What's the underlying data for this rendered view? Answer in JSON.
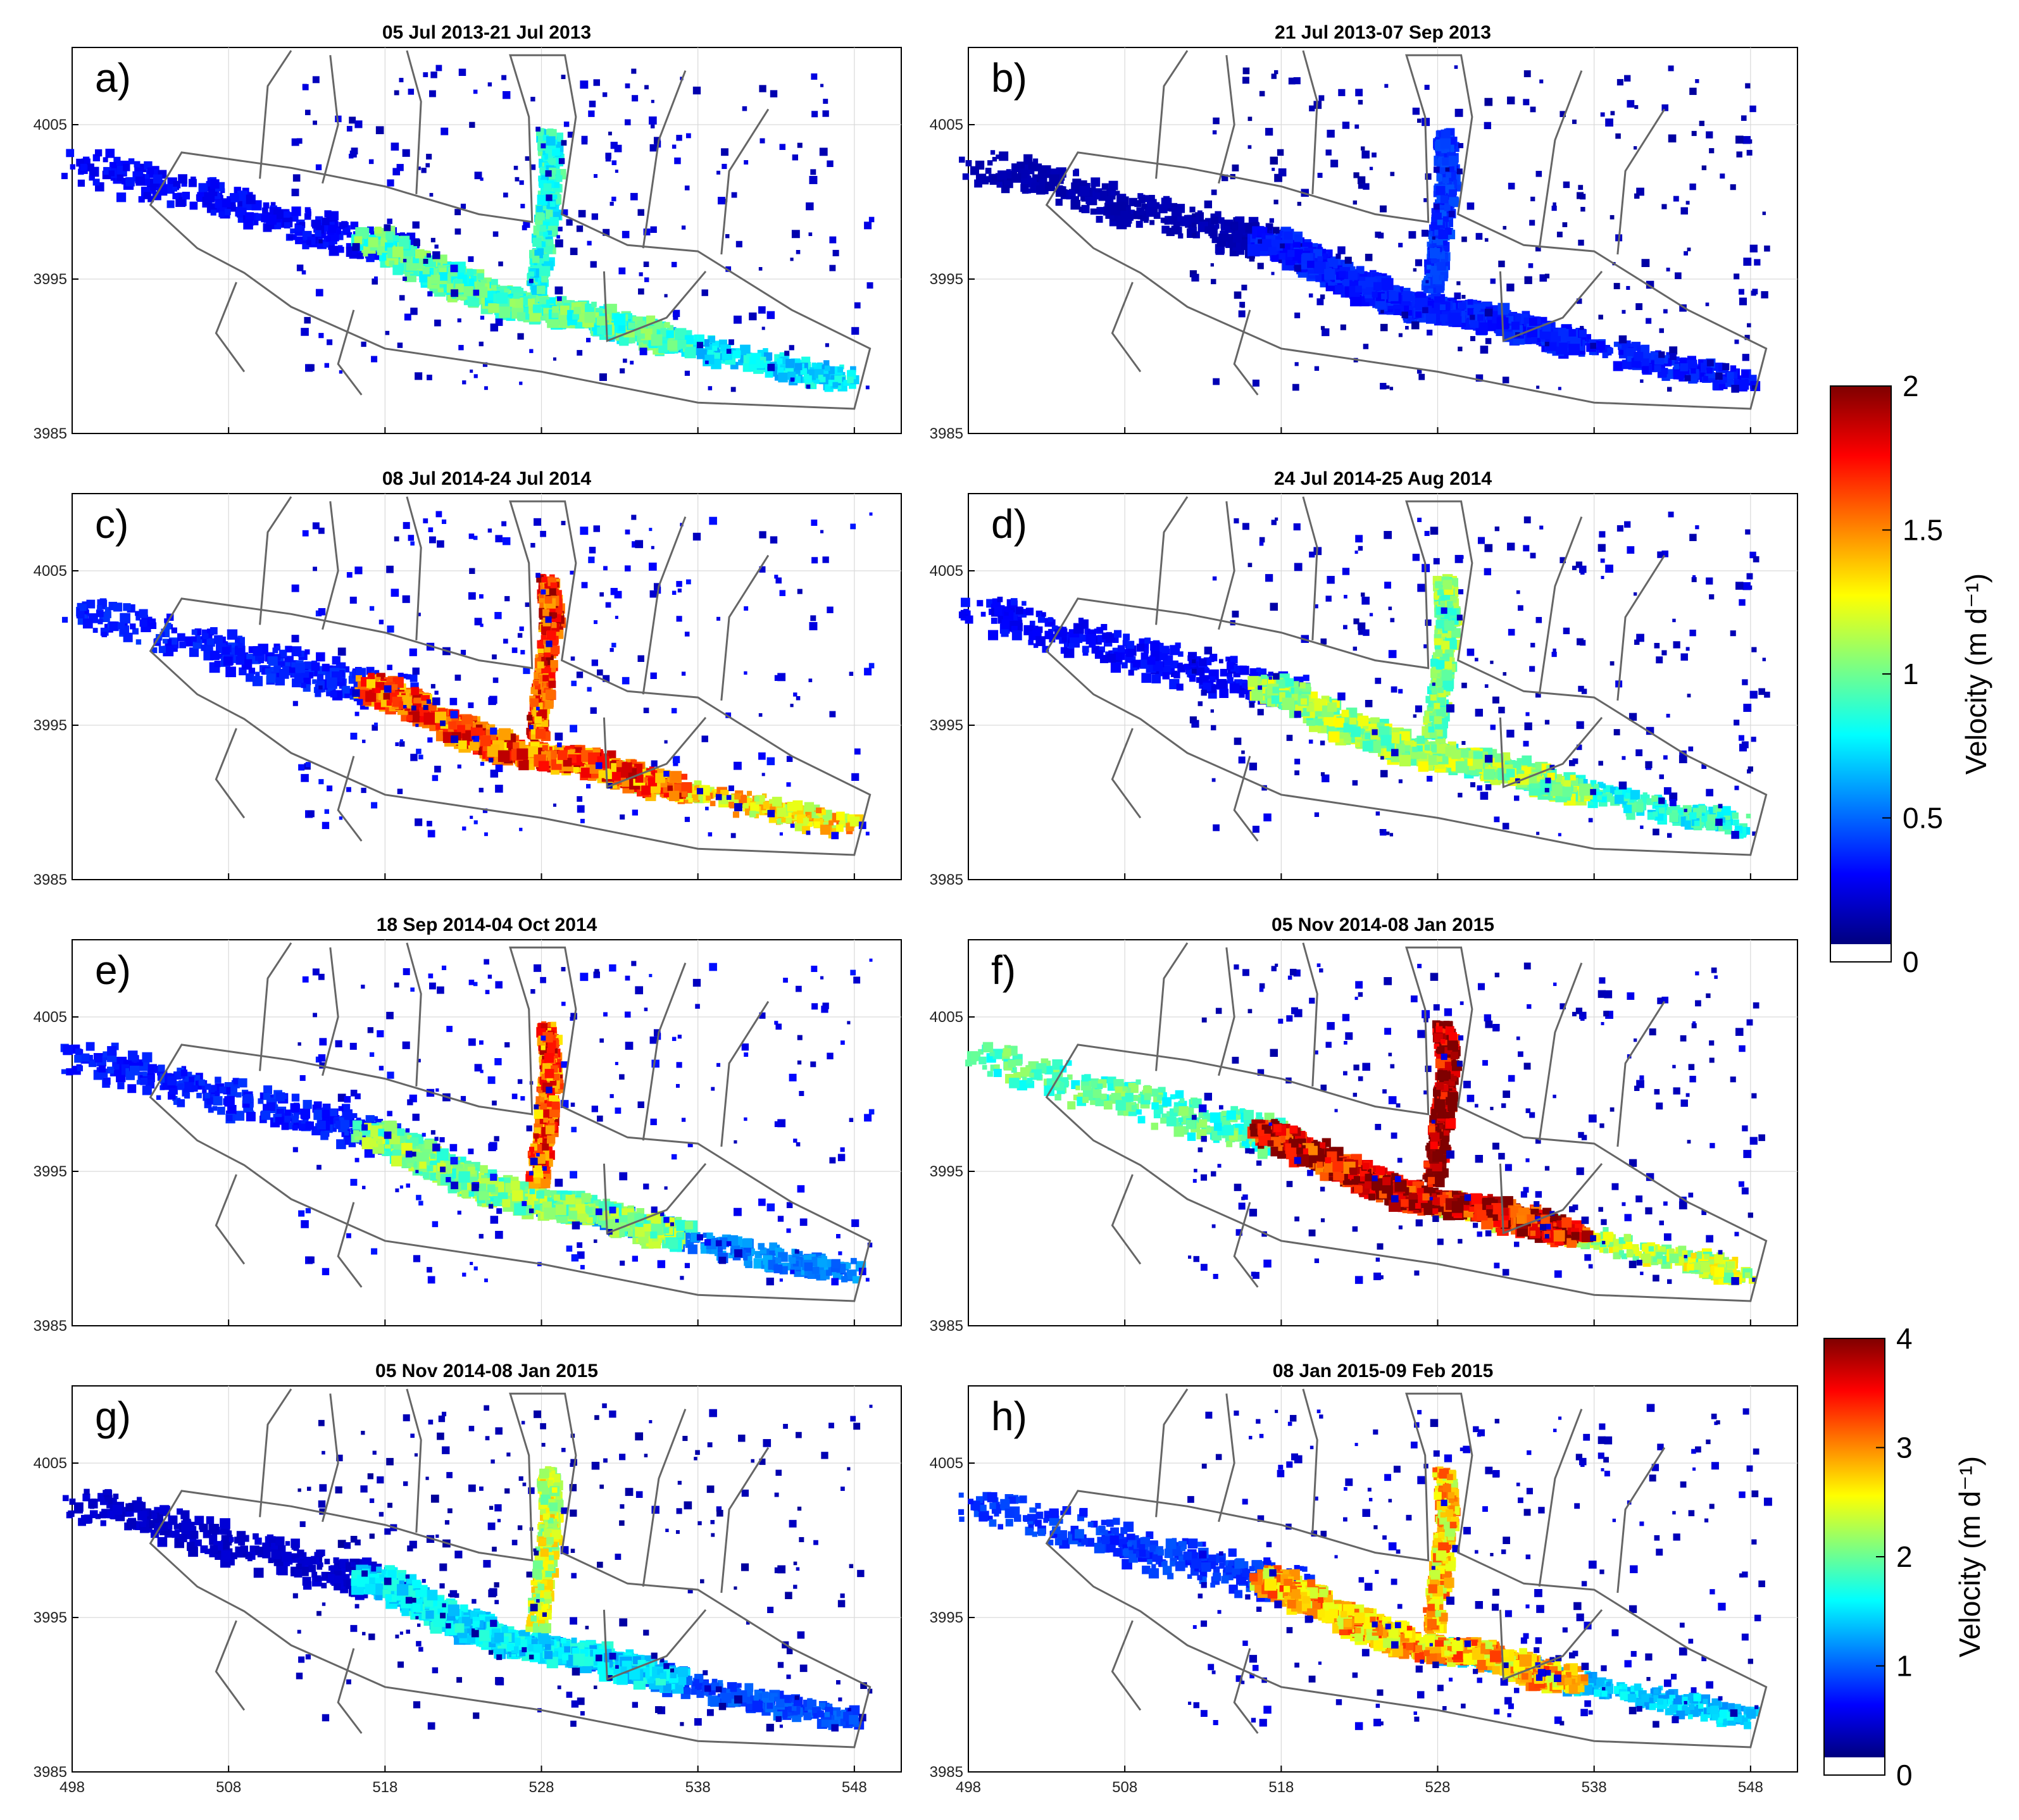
{
  "figure": {
    "colorbars": [
      {
        "label": "Velocity (m d⁻¹)",
        "ticks": [
          "0",
          "0.5",
          "1",
          "1.5",
          "2"
        ],
        "range": [
          0,
          2
        ],
        "applies_to_panels": [
          "a",
          "b",
          "c",
          "d",
          "e",
          "f"
        ]
      },
      {
        "label": "Velocity (m d⁻¹)",
        "ticks": [
          "0",
          "1",
          "2",
          "3",
          "4"
        ],
        "range": [
          0,
          4
        ],
        "applies_to_panels": [
          "g",
          "h"
        ]
      }
    ],
    "colormap": [
      "#00007f",
      "#0000ff",
      "#007fff",
      "#00ffff",
      "#7fff7f",
      "#ffff00",
      "#ff7f00",
      "#ff0000",
      "#7f0000"
    ]
  },
  "chart_data": [
    {
      "type": "heatmap",
      "panel": "a)",
      "title": "05 Jul 2013-21 Jul 2013",
      "xlim": [
        498,
        551
      ],
      "ylim": [
        3985,
        4010
      ],
      "x_ticks": [],
      "y_ticks": [
        "3985",
        "3995",
        "4005"
      ],
      "colorbar_range": [
        0,
        2
      ],
      "trunk_velocity": 0.9,
      "tributary_velocity": 0.8,
      "lower_velocity": 0.7,
      "upper_velocity": 0.25,
      "background_velocity": 0.15
    },
    {
      "type": "heatmap",
      "panel": "b)",
      "title": "21 Jul 2013-07 Sep 2013",
      "xlim": [
        498,
        551
      ],
      "ylim": [
        3985,
        4010
      ],
      "x_ticks": [],
      "y_ticks": [
        "3985",
        "3995",
        "4005"
      ],
      "colorbar_range": [
        0,
        2
      ],
      "trunk_velocity": 0.3,
      "tributary_velocity": 0.35,
      "lower_velocity": 0.3,
      "upper_velocity": 0.1,
      "background_velocity": 0.1
    },
    {
      "type": "heatmap",
      "panel": "c)",
      "title": "08 Jul 2014-24 Jul 2014",
      "xlim": [
        498,
        551
      ],
      "ylim": [
        3985,
        4010
      ],
      "x_ticks": [],
      "y_ticks": [
        "3985",
        "3995",
        "4005"
      ],
      "colorbar_range": [
        0,
        2
      ],
      "trunk_velocity": 1.6,
      "tributary_velocity": 1.65,
      "lower_velocity": 1.3,
      "upper_velocity": 0.3,
      "background_velocity": 0.2
    },
    {
      "type": "heatmap",
      "panel": "d)",
      "title": "24 Jul 2014-25 Aug 2014",
      "xlim": [
        498,
        551
      ],
      "ylim": [
        3985,
        4010
      ],
      "x_ticks": [],
      "y_ticks": [
        "3985",
        "3995",
        "4005"
      ],
      "colorbar_range": [
        0,
        2
      ],
      "trunk_velocity": 1.05,
      "tributary_velocity": 1.0,
      "lower_velocity": 0.8,
      "upper_velocity": 0.25,
      "background_velocity": 0.15
    },
    {
      "type": "heatmap",
      "panel": "e)",
      "title": "18 Sep 2014-04 Oct 2014",
      "xlim": [
        498,
        551
      ],
      "ylim": [
        3985,
        4010
      ],
      "x_ticks": [],
      "y_ticks": [
        "3985",
        "3995",
        "4005"
      ],
      "colorbar_range": [
        0,
        2
      ],
      "trunk_velocity": 1.0,
      "tributary_velocity": 1.6,
      "lower_velocity": 0.5,
      "upper_velocity": 0.3,
      "background_velocity": 0.2
    },
    {
      "type": "heatmap",
      "panel": "f)",
      "title": "05 Nov 2014-08 Jan 2015",
      "xlim": [
        498,
        551
      ],
      "ylim": [
        3985,
        4010
      ],
      "x_ticks": [],
      "y_ticks": [
        "3985",
        "3995",
        "4005"
      ],
      "colorbar_range": [
        0,
        2
      ],
      "trunk_velocity": 1.85,
      "tributary_velocity": 2.0,
      "lower_velocity": 1.1,
      "upper_velocity": 0.9,
      "background_velocity": 0.15
    },
    {
      "type": "heatmap",
      "panel": "g)",
      "title": "05 Nov 2014-08 Jan 2015",
      "xlim": [
        498,
        551
      ],
      "ylim": [
        3985,
        4010
      ],
      "x_ticks": [
        "498",
        "508",
        "518",
        "528",
        "538",
        "548"
      ],
      "y_ticks": [
        "3985",
        "3995",
        "4005"
      ],
      "colorbar_range": [
        0,
        4
      ],
      "trunk_velocity": 1.4,
      "tributary_velocity": 2.3,
      "lower_velocity": 0.8,
      "upper_velocity": 0.3,
      "background_velocity": 0.2
    },
    {
      "type": "heatmap",
      "panel": "h)",
      "title": "08 Jan 2015-09 Feb 2015",
      "xlim": [
        498,
        551
      ],
      "ylim": [
        3985,
        4010
      ],
      "x_ticks": [
        "498",
        "508",
        "518",
        "528",
        "538",
        "548"
      ],
      "y_ticks": [
        "3985",
        "3995",
        "4005"
      ],
      "colorbar_range": [
        0,
        4
      ],
      "trunk_velocity": 2.8,
      "tributary_velocity": 2.7,
      "lower_velocity": 1.3,
      "upper_velocity": 0.7,
      "background_velocity": 0.3
    }
  ]
}
